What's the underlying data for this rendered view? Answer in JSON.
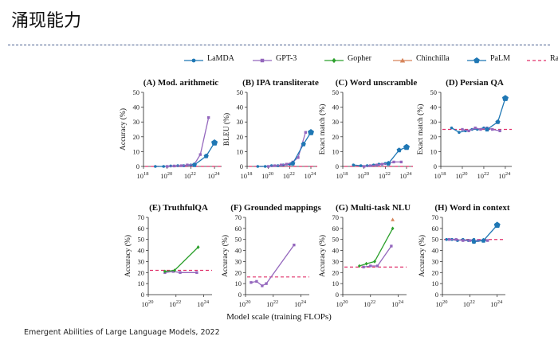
{
  "slide": {
    "title": "涌现能力",
    "x_common_label": "Model scale (training FLOPs)",
    "footer": "Emergent Abilities of Large Language Models, 2022"
  },
  "legend": [
    {
      "name": "LaMDA",
      "color": "#1f77b4",
      "marker": "circle",
      "dashed": false
    },
    {
      "name": "GPT-3",
      "color": "#9467bd",
      "marker": "square",
      "dashed": false
    },
    {
      "name": "Gopher",
      "color": "#2ca02c",
      "marker": "diamond",
      "dashed": false
    },
    {
      "name": "Chinchilla",
      "color": "#d6845a",
      "marker": "triangle",
      "dashed": false
    },
    {
      "name": "PaLM",
      "color": "#1f77b4",
      "marker": "pentagon",
      "dashed": false
    },
    {
      "name": "Random",
      "color": "#e0306a",
      "marker": "none",
      "dashed": true
    }
  ],
  "chart_data": [
    {
      "type": "line",
      "title": "(A) Mod. arithmetic",
      "ylabel": "Accuracy (%)",
      "xlim": [
        18,
        24.6
      ],
      "ylim": [
        0,
        50
      ],
      "xticks": [
        18,
        20,
        22,
        24
      ],
      "yticks": [
        0,
        10,
        20,
        30,
        40,
        50
      ],
      "random": 0,
      "series": [
        {
          "name": "LaMDA",
          "x": [
            19.0,
            19.7,
            20.3,
            20.9,
            21.4,
            22.0
          ],
          "y": [
            0,
            0,
            0.3,
            0.5,
            0.5,
            1
          ]
        },
        {
          "name": "GPT-3",
          "x": [
            20.0,
            20.6,
            21.2,
            21.7,
            22.3,
            22.8,
            23.5
          ],
          "y": [
            0,
            0.3,
            0.5,
            1,
            1.5,
            8,
            33
          ]
        },
        {
          "name": "PaLM",
          "x": [
            22.3,
            23.3,
            24.0
          ],
          "y": [
            1,
            7,
            16
          ]
        }
      ]
    },
    {
      "type": "line",
      "title": "(B) IPA transliterate",
      "ylabel": "BLEU (%)",
      "xlim": [
        18,
        24.6
      ],
      "ylim": [
        0,
        50
      ],
      "xticks": [
        18,
        20,
        22,
        24
      ],
      "yticks": [
        0,
        10,
        20,
        30,
        40,
        50
      ],
      "random": 0,
      "series": [
        {
          "name": "LaMDA",
          "x": [
            19.0,
            19.7,
            20.3,
            20.9,
            21.4,
            22.0
          ],
          "y": [
            0,
            0,
            0.5,
            0.5,
            1,
            1.5
          ]
        },
        {
          "name": "GPT-3",
          "x": [
            20.0,
            20.6,
            21.2,
            21.7,
            22.3,
            22.8,
            23.5
          ],
          "y": [
            0,
            0.5,
            1,
            1.5,
            3,
            6,
            23
          ]
        },
        {
          "name": "PaLM",
          "x": [
            22.3,
            23.3,
            24.0
          ],
          "y": [
            2,
            15,
            23
          ]
        }
      ]
    },
    {
      "type": "line",
      "title": "(C) Word unscramble",
      "ylabel": "Exact match (%)",
      "xlim": [
        18,
        24.6
      ],
      "ylim": [
        0,
        50
      ],
      "xticks": [
        18,
        20,
        22,
        24
      ],
      "yticks": [
        0,
        10,
        20,
        30,
        40,
        50
      ],
      "random": 0,
      "series": [
        {
          "name": "LaMDA",
          "x": [
            19.0,
            19.7,
            20.3,
            20.9,
            21.4,
            22.0
          ],
          "y": [
            1,
            0.5,
            0.5,
            1,
            1.5,
            2
          ]
        },
        {
          "name": "GPT-3",
          "x": [
            20.0,
            20.6,
            21.2,
            21.7,
            22.3,
            22.8,
            23.5
          ],
          "y": [
            0,
            0.5,
            1,
            1.5,
            2,
            3,
            3
          ]
        },
        {
          "name": "PaLM",
          "x": [
            22.3,
            23.3,
            24.0
          ],
          "y": [
            2,
            11,
            13
          ]
        }
      ]
    },
    {
      "type": "line",
      "title": "(D) Persian QA",
      "ylabel": "Exact match (%)",
      "xlim": [
        18,
        24.6
      ],
      "ylim": [
        0,
        50
      ],
      "xticks": [
        18,
        20,
        22,
        24
      ],
      "yticks": [
        0,
        10,
        20,
        30,
        40,
        50
      ],
      "random": 25,
      "series": [
        {
          "name": "LaMDA",
          "x": [
            19.0,
            19.7,
            20.3,
            20.9,
            21.4,
            22.0
          ],
          "y": [
            26,
            23,
            24,
            25,
            25,
            26
          ]
        },
        {
          "name": "GPT-3",
          "x": [
            20.0,
            20.6,
            21.2,
            21.7,
            22.3,
            22.8,
            23.5
          ],
          "y": [
            25,
            24,
            26,
            25,
            26,
            25,
            24
          ]
        },
        {
          "name": "PaLM",
          "x": [
            22.3,
            23.3,
            24.0
          ],
          "y": [
            25,
            30,
            46
          ]
        }
      ]
    },
    {
      "type": "line",
      "title": "(E) TruthfulQA",
      "ylabel": "Accuracy (%)",
      "xlim": [
        20,
        24.6
      ],
      "ylim": [
        0,
        70
      ],
      "xticks": [
        20,
        22,
        24
      ],
      "yticks": [
        0,
        10,
        20,
        30,
        40,
        50,
        60,
        70
      ],
      "random": 22,
      "series": [
        {
          "name": "GPT-3",
          "x": [
            21.2,
            21.8,
            22.3,
            23.5
          ],
          "y": [
            20,
            21,
            20,
            20
          ]
        },
        {
          "name": "Gopher",
          "x": [
            21.2,
            21.9,
            23.6
          ],
          "y": [
            21,
            22,
            43
          ]
        }
      ]
    },
    {
      "type": "line",
      "title": "(F) Grounded mappings",
      "ylabel": "Accuracy (%)",
      "xlim": [
        20,
        24.6
      ],
      "ylim": [
        0,
        70
      ],
      "xticks": [
        20,
        22,
        24
      ],
      "yticks": [
        0,
        10,
        20,
        30,
        40,
        50,
        60,
        70
      ],
      "random": 16,
      "series": [
        {
          "name": "GPT-3",
          "x": [
            20.4,
            20.8,
            21.2,
            21.5,
            23.5
          ],
          "y": [
            11,
            12,
            8,
            10,
            45
          ]
        }
      ]
    },
    {
      "type": "line",
      "title": "(G) Multi-task NLU",
      "ylabel": "Accuracy (%)",
      "xlim": [
        20,
        24.6
      ],
      "ylim": [
        0,
        70
      ],
      "xticks": [
        20,
        22,
        24
      ],
      "yticks": [
        0,
        10,
        20,
        30,
        40,
        50,
        60,
        70
      ],
      "random": 25,
      "series": [
        {
          "name": "GPT-3",
          "x": [
            21.5,
            22.0,
            22.5,
            23.5
          ],
          "y": [
            25,
            26,
            26,
            44
          ]
        },
        {
          "name": "Gopher",
          "x": [
            21.2,
            21.7,
            22.3,
            23.6
          ],
          "y": [
            26,
            28,
            30,
            60
          ]
        },
        {
          "name": "Chinchilla",
          "x": [
            23.6
          ],
          "y": [
            68
          ]
        }
      ]
    },
    {
      "type": "line",
      "title": "(H) Word in context",
      "ylabel": "Accuracy (%)",
      "xlim": [
        20,
        24.6
      ],
      "ylim": [
        0,
        70
      ],
      "xticks": [
        20,
        22,
        24
      ],
      "yticks": [
        0,
        10,
        20,
        30,
        40,
        50,
        60,
        70
      ],
      "random": 50,
      "series": [
        {
          "name": "LaMDA",
          "x": [
            20.3,
            20.7,
            21.1,
            21.5,
            21.9,
            22.3
          ],
          "y": [
            50,
            50,
            49,
            50,
            49,
            50
          ]
        },
        {
          "name": "GPT-3",
          "x": [
            20.5,
            21.0,
            21.5,
            22.0,
            22.6,
            23.3
          ],
          "y": [
            50,
            50,
            49,
            49,
            49,
            49
          ]
        },
        {
          "name": "PaLM",
          "x": [
            22.3,
            23.0,
            24.0
          ],
          "y": [
            48,
            49,
            63
          ]
        }
      ]
    }
  ]
}
